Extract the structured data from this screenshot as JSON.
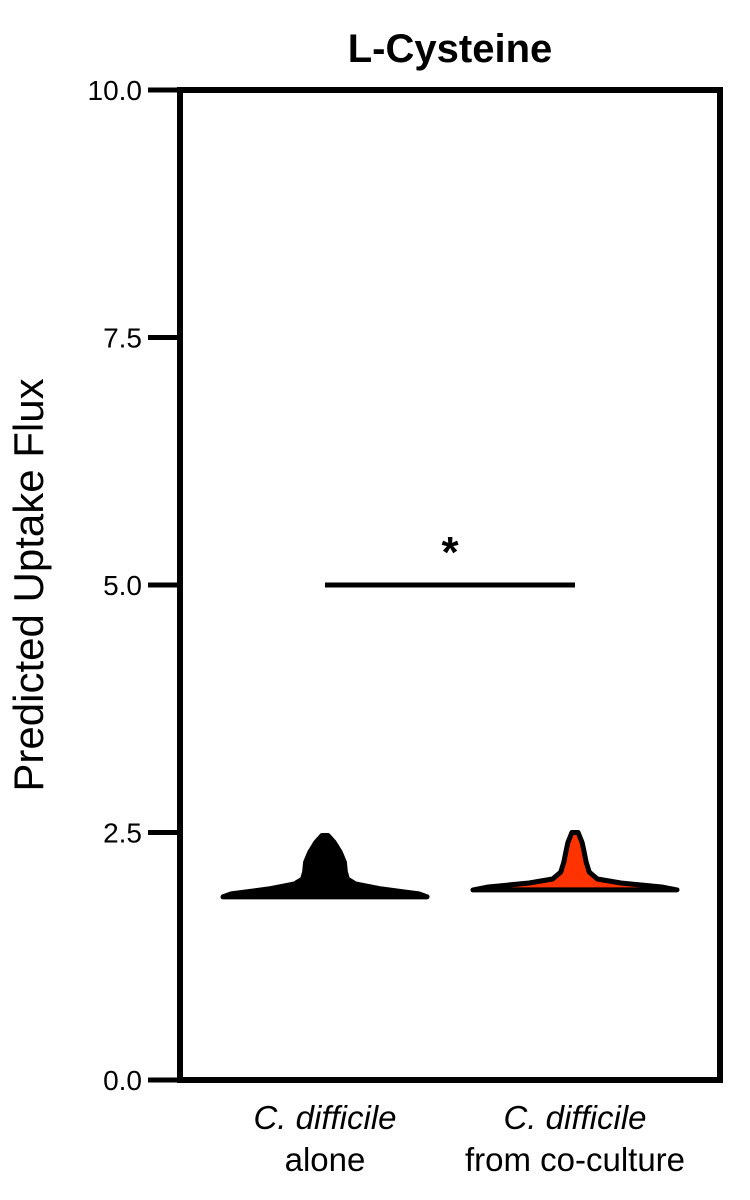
{
  "chart_data": {
    "type": "violin",
    "title": "L-Cysteine",
    "ylabel": "Predicted Uptake Flux",
    "xlabel": "",
    "ylim": [
      0,
      10
    ],
    "yticks": [
      {
        "value": 0,
        "label": "0.0"
      },
      {
        "value": 2.5,
        "label": "2.5"
      },
      {
        "value": 5,
        "label": "5.0"
      },
      {
        "value": 7.5,
        "label": "7.5"
      },
      {
        "value": 10,
        "label": "10.0"
      }
    ],
    "grid": false,
    "categories": [
      {
        "line1": "C. difficile",
        "line2": "alone"
      },
      {
        "line1": "C. difficile",
        "line2": "from co-culture"
      }
    ],
    "series": [
      {
        "color": "#000000",
        "min": 1.85,
        "max": 2.47,
        "profile": [
          {
            "y": 1.85,
            "w": 1.0
          },
          {
            "y": 1.88,
            "w": 0.92
          },
          {
            "y": 1.93,
            "w": 0.55
          },
          {
            "y": 1.98,
            "w": 0.3
          },
          {
            "y": 2.03,
            "w": 0.22
          },
          {
            "y": 2.1,
            "w": 0.2
          },
          {
            "y": 2.2,
            "w": 0.19
          },
          {
            "y": 2.3,
            "w": 0.15
          },
          {
            "y": 2.4,
            "w": 0.09
          },
          {
            "y": 2.47,
            "w": 0.03
          }
        ]
      },
      {
        "color": "#ff3300",
        "min": 1.92,
        "max": 2.5,
        "profile": [
          {
            "y": 1.92,
            "w": 1.0
          },
          {
            "y": 1.95,
            "w": 0.85
          },
          {
            "y": 1.99,
            "w": 0.45
          },
          {
            "y": 2.03,
            "w": 0.22
          },
          {
            "y": 2.1,
            "w": 0.14
          },
          {
            "y": 2.2,
            "w": 0.11
          },
          {
            "y": 2.3,
            "w": 0.09
          },
          {
            "y": 2.4,
            "w": 0.07
          },
          {
            "y": 2.5,
            "w": 0.03
          }
        ]
      }
    ],
    "significance": {
      "from_category": 0,
      "to_category": 1,
      "y": 5.0,
      "label": "*"
    }
  }
}
